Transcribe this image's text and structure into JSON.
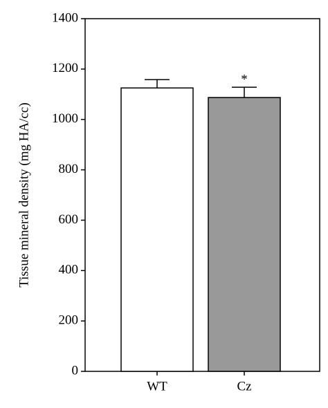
{
  "chart_data": {
    "type": "bar",
    "y_label": "Tissue mineral density (mg HA/cc)",
    "categories": [
      "WT",
      "Cz"
    ],
    "values": [
      1125,
      1087
    ],
    "errors": [
      33,
      41
    ],
    "colors": [
      "#ffffff",
      "#999999"
    ],
    "annotation": "*",
    "ylim": [
      0,
      1400
    ],
    "yticks": [
      0,
      200,
      400,
      600,
      800,
      1000,
      1200,
      1400
    ]
  }
}
